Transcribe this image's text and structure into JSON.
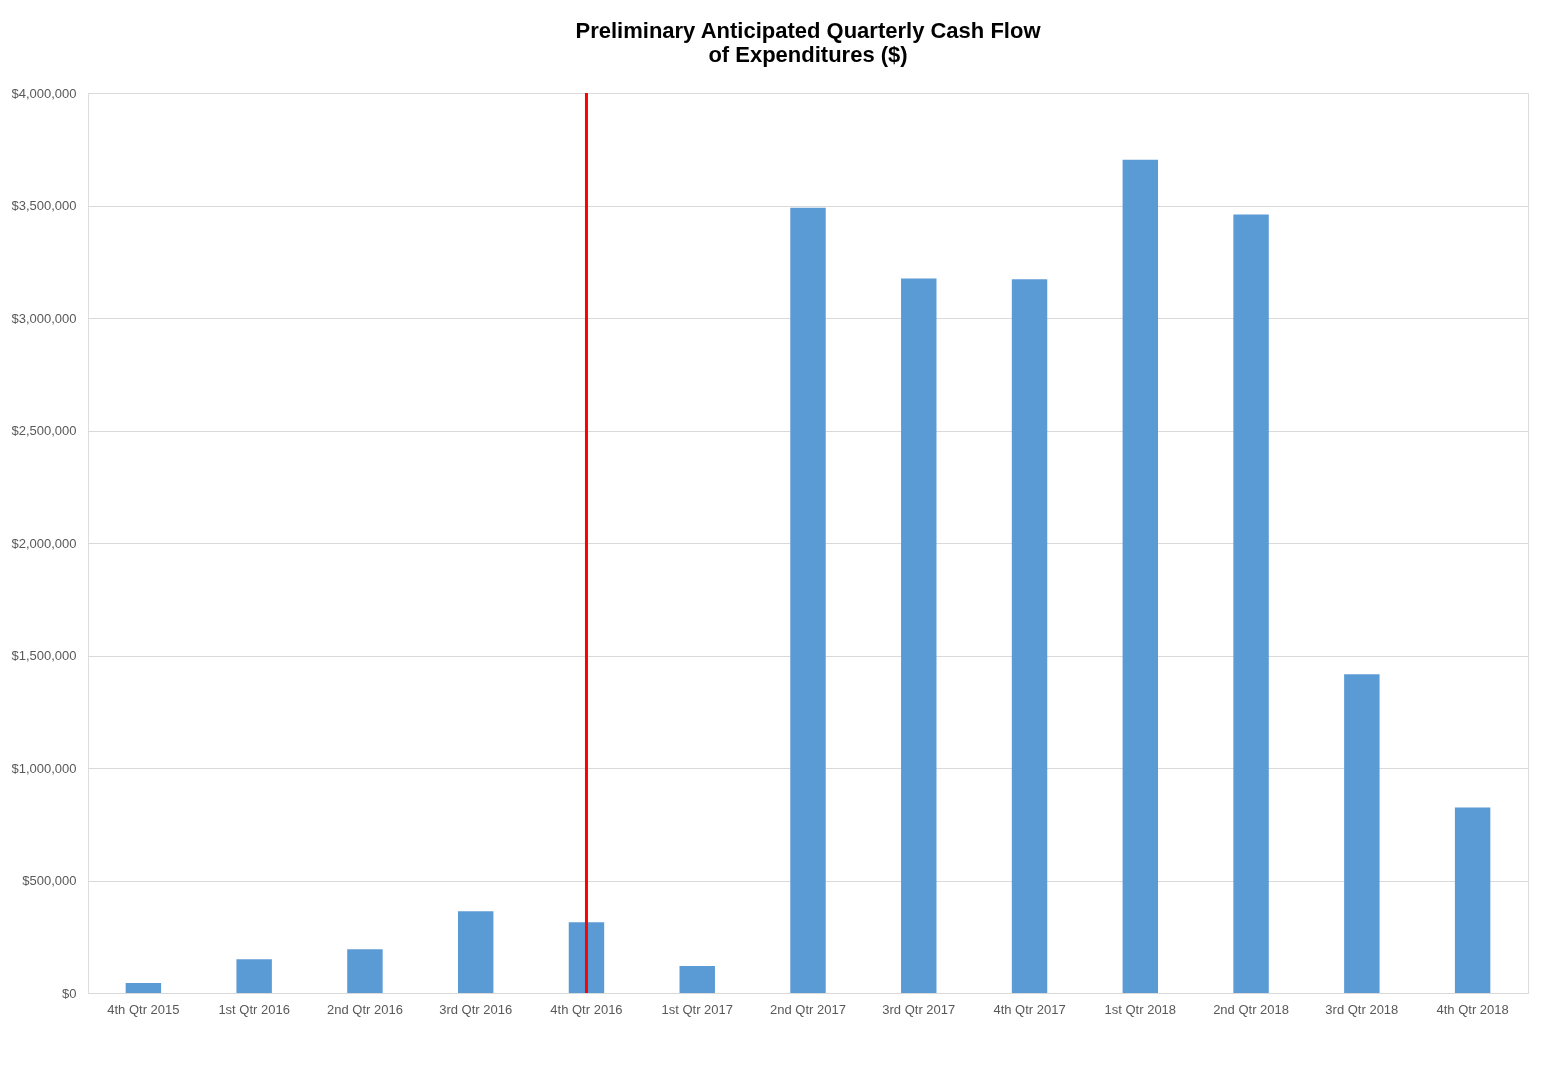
{
  "chart_data": {
    "type": "bar",
    "title": "Preliminary Anticipated Quarterly Cash Flow of Expenditures ($)",
    "categories": [
      "4th Qtr 2015",
      "1st Qtr 2016",
      "2nd Qtr 2016",
      "3rd Qtr 2016",
      "4th Qtr 2016",
      "1st Qtr 2017",
      "2nd Qtr 2017",
      "3rd Qtr 2017",
      "4th Qtr 2017",
      "1st Qtr 2018",
      "2nd Qtr 2018",
      "3rd Qtr 2018",
      "4th Qtr 2018"
    ],
    "values": [
      45000,
      150000,
      195000,
      363000,
      315000,
      120000,
      3490000,
      3176000,
      3172000,
      3703000,
      3460000,
      1417000,
      824000
    ],
    "color": "#5b9bd5",
    "ylim": [
      0,
      4000000
    ],
    "yticks": [
      {
        "value": 0,
        "label": "$0"
      },
      {
        "value": 500000,
        "label": "$500,000"
      },
      {
        "value": 1000000,
        "label": "$1,000,000"
      },
      {
        "value": 1500000,
        "label": "$1,500,000"
      },
      {
        "value": 2000000,
        "label": "$2,000,000"
      },
      {
        "value": 2500000,
        "label": "$2,500,000"
      },
      {
        "value": 3000000,
        "label": "$3,000,000"
      },
      {
        "value": 3500000,
        "label": "$3,500,000"
      },
      {
        "value": 4000000,
        "label": "$4,000,000"
      }
    ],
    "grid": "y",
    "ref_lines": [
      {
        "axis": "x",
        "value": "4th Qtr 2016",
        "color": "#ff0000"
      }
    ]
  }
}
